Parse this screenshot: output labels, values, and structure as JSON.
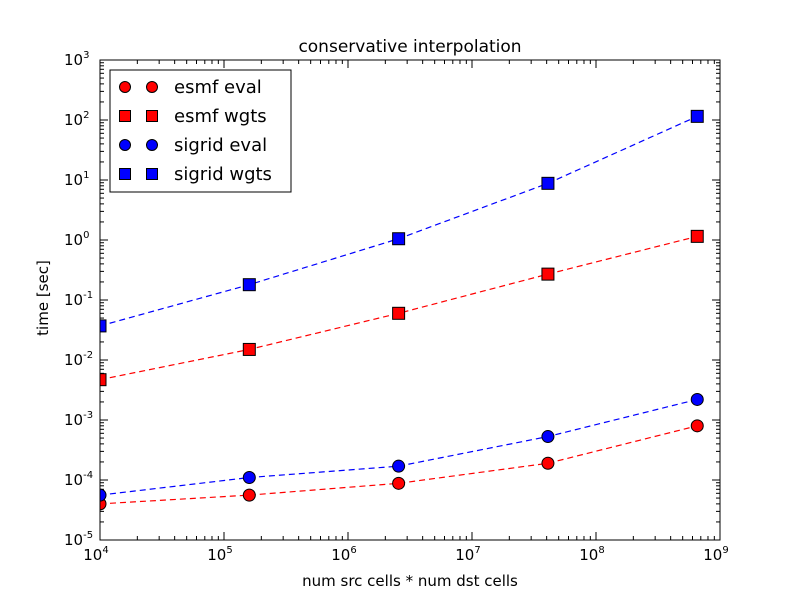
{
  "chart_data": {
    "type": "scatter",
    "title": "conservative interpolation",
    "xlabel": "num src cells * num dst cells",
    "ylabel": "time [sec]",
    "xscale": "log",
    "yscale": "log",
    "xlim": [
      10000,
      1000000000
    ],
    "ylim": [
      1e-05,
      1000
    ],
    "x_ticks": [
      {
        "base": "10",
        "exp": "4",
        "value": 10000
      },
      {
        "base": "10",
        "exp": "5",
        "value": 100000
      },
      {
        "base": "10",
        "exp": "6",
        "value": 1000000
      },
      {
        "base": "10",
        "exp": "7",
        "value": 10000000
      },
      {
        "base": "10",
        "exp": "8",
        "value": 100000000
      },
      {
        "base": "10",
        "exp": "9",
        "value": 1000000000
      }
    ],
    "y_ticks": [
      {
        "base": "10",
        "exp": "-5",
        "value": 1e-05
      },
      {
        "base": "10",
        "exp": "-4",
        "value": 0.0001
      },
      {
        "base": "10",
        "exp": "-3",
        "value": 0.001
      },
      {
        "base": "10",
        "exp": "-2",
        "value": 0.01
      },
      {
        "base": "10",
        "exp": "-1",
        "value": 0.1
      },
      {
        "base": "10",
        "exp": "0",
        "value": 1
      },
      {
        "base": "10",
        "exp": "1",
        "value": 10
      },
      {
        "base": "10",
        "exp": "2",
        "value": 100
      },
      {
        "base": "10",
        "exp": "3",
        "value": 1000
      }
    ],
    "x": [
      10000,
      160000,
      2560000,
      40960000,
      655360000
    ],
    "legend_position": "upper left",
    "grid": false,
    "series": [
      {
        "name": "esmf eval",
        "color": "#ff0000",
        "marker": "circle",
        "values": [
          4e-05,
          5.6e-05,
          8.8e-05,
          0.00019,
          0.0008
        ]
      },
      {
        "name": "esmf wgts",
        "color": "#ff0000",
        "marker": "square",
        "values": [
          0.0047,
          0.015,
          0.06,
          0.27,
          1.15
        ]
      },
      {
        "name": "sigrid eval",
        "color": "#0000ff",
        "marker": "circle",
        "values": [
          5.6e-05,
          0.00011,
          0.00017,
          0.00053,
          0.0022
        ]
      },
      {
        "name": "sigrid wgts",
        "color": "#0000ff",
        "marker": "square",
        "values": [
          0.037,
          0.18,
          1.05,
          8.8,
          115
        ]
      }
    ]
  }
}
